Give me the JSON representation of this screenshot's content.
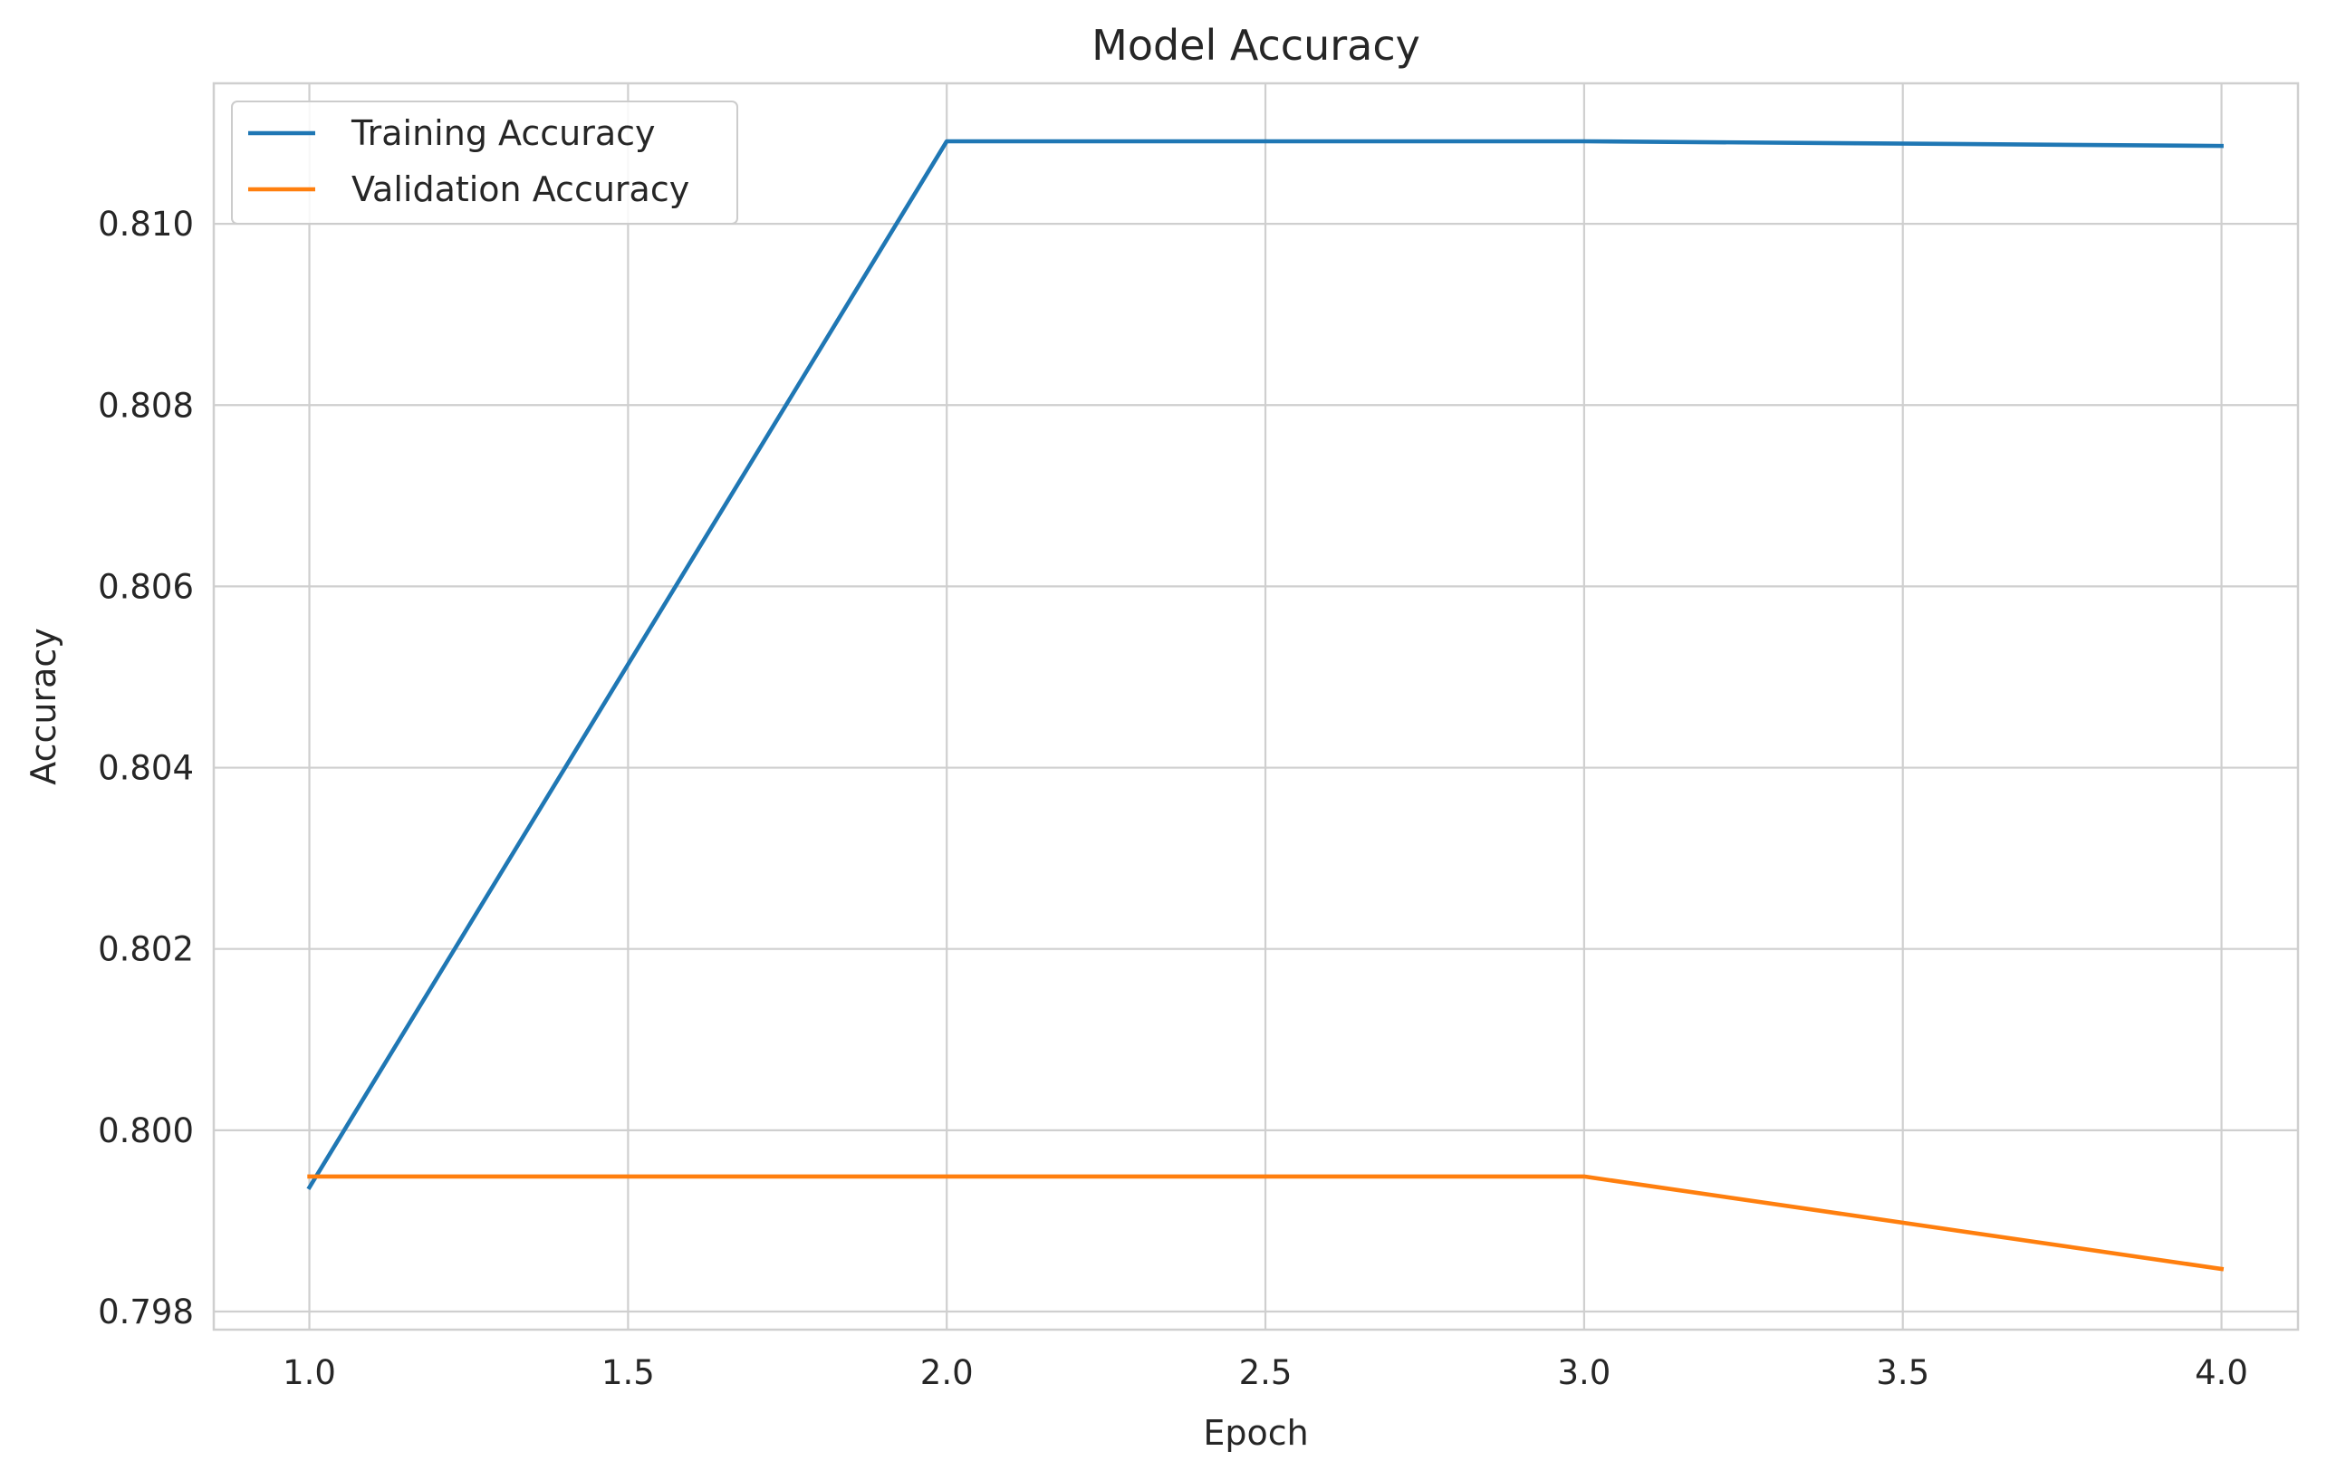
{
  "chart_data": {
    "type": "line",
    "title": "Model Accuracy",
    "xlabel": "Epoch",
    "ylabel": "Accuracy",
    "x": [
      1,
      2,
      3,
      4
    ],
    "xlim": [
      0.85,
      4.12
    ],
    "ylim": [
      0.7978,
      0.81155
    ],
    "xticks": [
      1.0,
      1.5,
      2.0,
      2.5,
      3.0,
      3.5,
      4.0
    ],
    "xtick_labels": [
      "1.0",
      "1.5",
      "2.0",
      "2.5",
      "3.0",
      "3.5",
      "4.0"
    ],
    "yticks": [
      0.798,
      0.8,
      0.802,
      0.804,
      0.806,
      0.808,
      0.81
    ],
    "ytick_labels": [
      "0.798",
      "0.800",
      "0.802",
      "0.804",
      "0.806",
      "0.808",
      "0.810"
    ],
    "grid": true,
    "legend_position": "top-left",
    "series": [
      {
        "name": "Training Accuracy",
        "color": "#1f77b4",
        "values": [
          0.79937,
          0.81091,
          0.81091,
          0.81086
        ]
      },
      {
        "name": "Validation Accuracy",
        "color": "#ff7f0e",
        "values": [
          0.79949,
          0.79949,
          0.79949,
          0.79847
        ]
      }
    ]
  }
}
